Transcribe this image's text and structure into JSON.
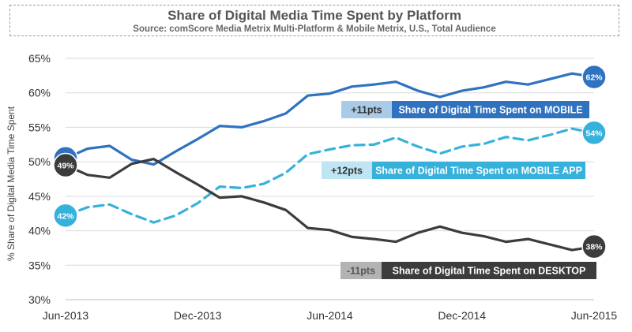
{
  "chart_data": {
    "type": "line",
    "title": "Share of Digital Media Time Spent by Platform",
    "subtitle": "Source: comScore Media Metrix Multi-Platform & Mobile Metrix, U.S., Total Audience",
    "ylabel": "% Share of Digital Media Time Spent",
    "xlabel": "",
    "ylim": [
      30,
      65
    ],
    "yticks": [
      "30%",
      "35%",
      "40%",
      "45%",
      "50%",
      "55%",
      "60%",
      "65%"
    ],
    "ytick_values": [
      30,
      35,
      40,
      45,
      50,
      55,
      60,
      65
    ],
    "xtick_labels": [
      "Jun-2013",
      "Dec-2013",
      "Jun-2014",
      "Dec-2014",
      "Jun-2015"
    ],
    "xtick_index": [
      0,
      6,
      12,
      18,
      24
    ],
    "x_count": 25,
    "series": [
      {
        "name": "Share of Digital Time Spent on MOBILE",
        "change": "+11pts",
        "start_label": "51%",
        "end_label": "62%",
        "color": "#2f72bf",
        "change_color": "#a9cbe8",
        "style": "solid",
        "values": [
          50.5,
          51.9,
          52.3,
          50.3,
          49.6,
          51.5,
          53.3,
          55.2,
          55.0,
          55.9,
          57.0,
          59.6,
          59.9,
          60.9,
          61.2,
          61.6,
          60.3,
          59.4,
          60.3,
          60.8,
          61.6,
          61.2,
          62.0,
          62.8,
          62.3
        ]
      },
      {
        "name": "Share of Digital Time Spent on MOBILE APP",
        "change": "+12pts",
        "start_label": "42%",
        "end_label": "54%",
        "color": "#36b1dc",
        "change_color": "#bfe4f3",
        "style": "dashed",
        "values": [
          42.2,
          43.4,
          43.8,
          42.4,
          41.2,
          42.2,
          44.0,
          46.4,
          46.2,
          46.8,
          48.4,
          51.1,
          51.8,
          52.4,
          52.5,
          53.5,
          52.2,
          51.2,
          52.2,
          52.6,
          53.6,
          53.1,
          53.9,
          54.8,
          54.2
        ]
      },
      {
        "name": "Share of Digital Time Spent on DESKTOP",
        "change": "-11pts",
        "start_label": "49%",
        "end_label": "38%",
        "color": "#3c3c3c",
        "change_color": "#b3b3b3",
        "style": "solid",
        "values": [
          49.5,
          48.1,
          47.7,
          49.7,
          50.4,
          48.5,
          46.7,
          44.8,
          45.0,
          44.1,
          43.0,
          40.4,
          40.1,
          39.1,
          38.8,
          38.4,
          39.7,
          40.6,
          39.7,
          39.2,
          38.4,
          38.8,
          38.0,
          37.2,
          37.7
        ]
      }
    ]
  }
}
